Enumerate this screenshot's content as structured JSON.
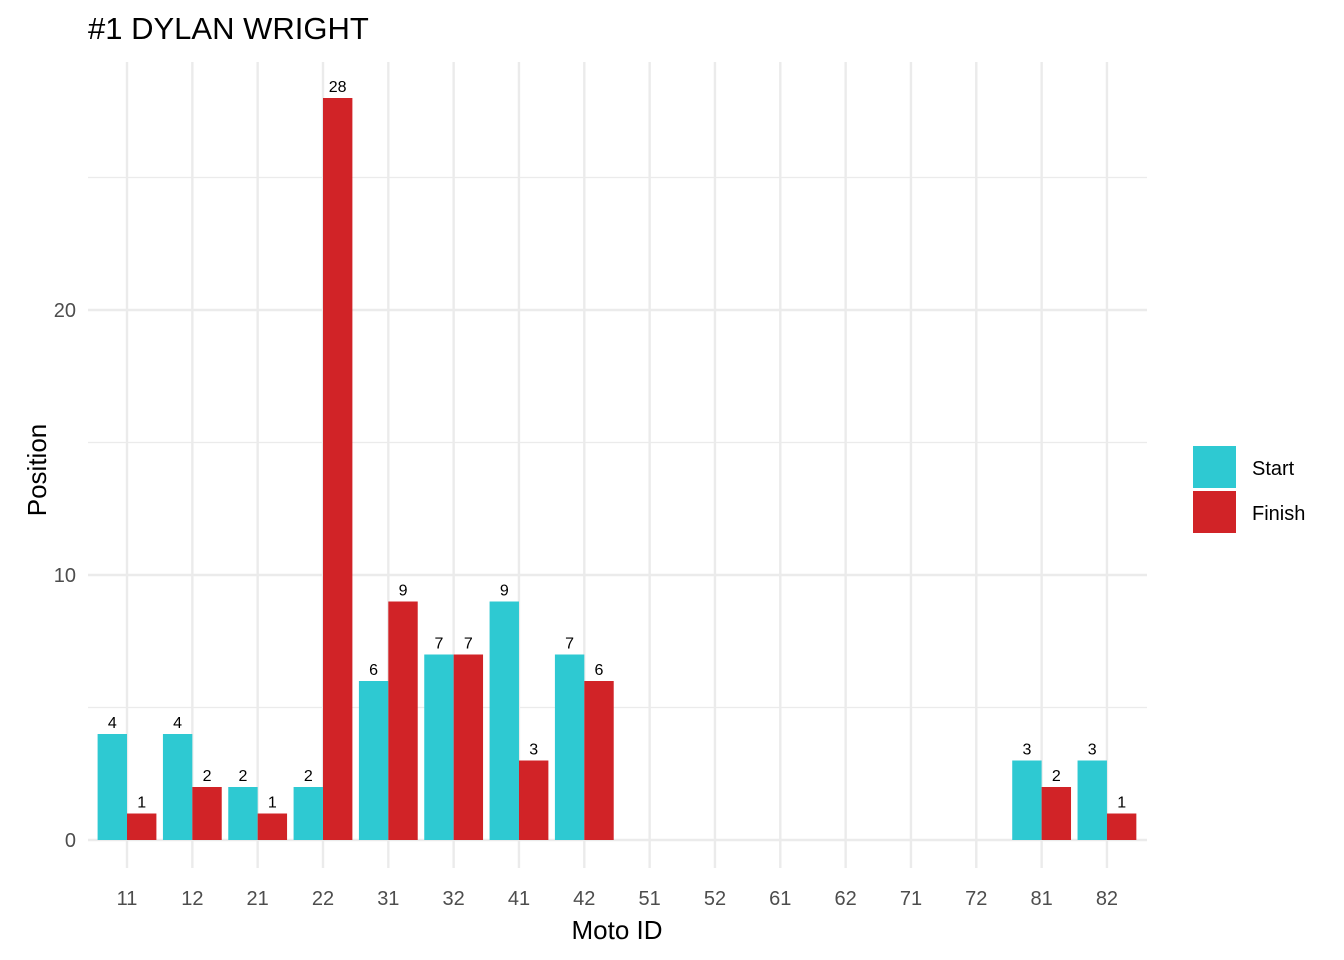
{
  "chart_data": {
    "type": "bar",
    "title": "#1 DYLAN WRIGHT",
    "xlabel": "Moto ID",
    "ylabel": "Position",
    "categories": [
      "11",
      "12",
      "21",
      "22",
      "31",
      "32",
      "41",
      "42",
      "51",
      "52",
      "61",
      "62",
      "71",
      "72",
      "81",
      "82"
    ],
    "series": [
      {
        "name": "Start",
        "color": "#2EC9D2",
        "values": [
          4,
          4,
          2,
          2,
          6,
          7,
          9,
          7,
          null,
          null,
          null,
          null,
          null,
          null,
          3,
          3
        ]
      },
      {
        "name": "Finish",
        "color": "#D12327",
        "values": [
          1,
          2,
          1,
          28,
          9,
          7,
          3,
          6,
          null,
          null,
          null,
          null,
          null,
          null,
          2,
          1
        ]
      }
    ],
    "ylim": [
      0,
      29
    ],
    "yticks": [
      0,
      10,
      20
    ],
    "grid": true,
    "legend_position": "right"
  }
}
